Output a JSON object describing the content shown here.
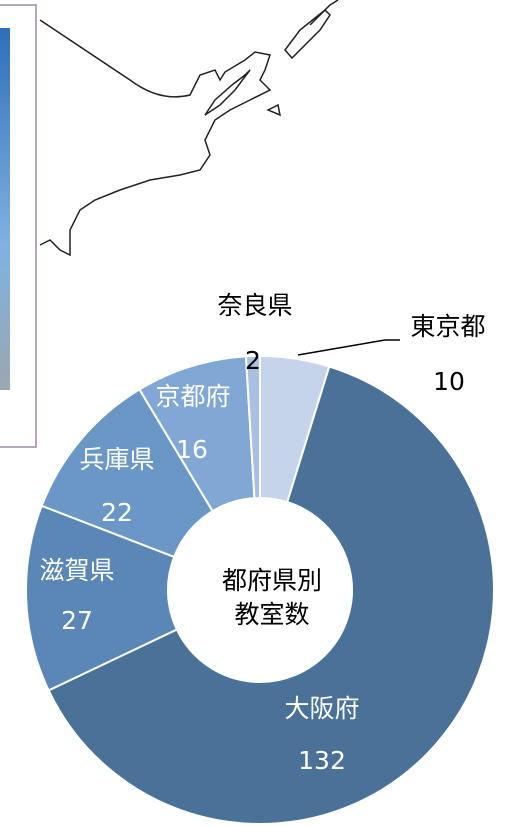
{
  "chart_data": {
    "type": "donut",
    "title_lines": [
      "都府県別",
      "教室数"
    ],
    "categories": [
      "東京都",
      "大阪府",
      "滋賀県",
      "兵庫県",
      "京都府",
      "奈良県"
    ],
    "values": [
      10,
      132,
      27,
      22,
      16,
      2
    ],
    "colors": [
      "#c5d4ea",
      "#4a7299",
      "#5a87b6",
      "#6b97c6",
      "#81a8d5",
      "#a9c0e0"
    ],
    "label_colors": [
      "#000000",
      "#ffffff",
      "#ffffff",
      "#ffffff",
      "#ffffff",
      "#000000"
    ]
  }
}
